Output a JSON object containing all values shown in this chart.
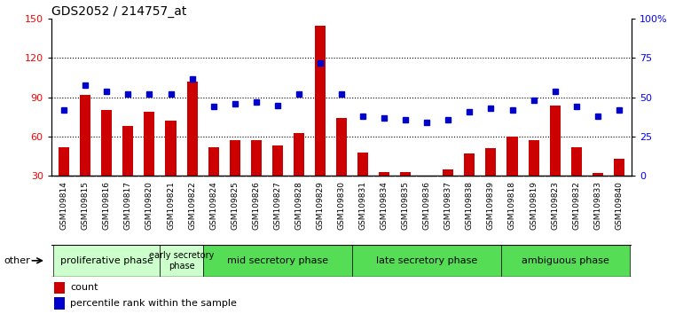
{
  "title": "GDS2052 / 214757_at",
  "samples": [
    "GSM109814",
    "GSM109815",
    "GSM109816",
    "GSM109817",
    "GSM109820",
    "GSM109821",
    "GSM109822",
    "GSM109824",
    "GSM109825",
    "GSM109826",
    "GSM109827",
    "GSM109828",
    "GSM109829",
    "GSM109830",
    "GSM109831",
    "GSM109834",
    "GSM109835",
    "GSM109836",
    "GSM109837",
    "GSM109838",
    "GSM109839",
    "GSM109818",
    "GSM109819",
    "GSM109823",
    "GSM109832",
    "GSM109833",
    "GSM109840"
  ],
  "counts": [
    52,
    92,
    80,
    68,
    79,
    72,
    102,
    52,
    57,
    57,
    53,
    63,
    145,
    74,
    48,
    33,
    33,
    30,
    35,
    47,
    51,
    60,
    57,
    84,
    52,
    32,
    43
  ],
  "percentiles": [
    42,
    58,
    54,
    52,
    52,
    52,
    62,
    44,
    46,
    47,
    45,
    52,
    72,
    52,
    38,
    37,
    36,
    34,
    36,
    41,
    43,
    42,
    48,
    54,
    44,
    38,
    42
  ],
  "bar_color": "#cc0000",
  "dot_color": "#0000cc",
  "ylim_left": [
    30,
    150
  ],
  "ylim_right": [
    0,
    100
  ],
  "yticks_left": [
    30,
    60,
    90,
    120,
    150
  ],
  "yticks_right": [
    0,
    25,
    50,
    75,
    100
  ],
  "ytick_labels_right": [
    "0",
    "25",
    "50",
    "75",
    "100%"
  ],
  "phase_defs": [
    {
      "label": "proliferative phase",
      "start": 0,
      "end": 4,
      "color": "#ccffcc"
    },
    {
      "label": "early secretory\nphase",
      "start": 5,
      "end": 6,
      "color": "#ccffcc"
    },
    {
      "label": "mid secretory phase",
      "start": 7,
      "end": 13,
      "color": "#55dd55"
    },
    {
      "label": "late secretory phase",
      "start": 14,
      "end": 20,
      "color": "#55dd55"
    },
    {
      "label": "ambiguous phase",
      "start": 21,
      "end": 26,
      "color": "#55dd55"
    }
  ],
  "other_label": "other",
  "legend_count": "count",
  "legend_percentile": "percentile rank within the sample",
  "plot_bg": "#ffffff",
  "xticklabel_bg": "#d8d8d8"
}
